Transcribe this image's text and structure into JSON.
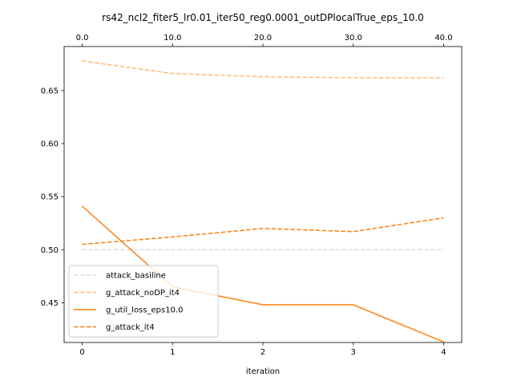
{
  "chart_data": {
    "type": "line",
    "title": "rs42_ncl2_fiter5_lr0.01_iter50_reg0.0001_outDPlocalTrue_eps_10.0",
    "xlabel": "iteration",
    "ylabel": "",
    "x": [
      0,
      1,
      2,
      3,
      4
    ],
    "xticks": [
      "0",
      "1",
      "2",
      "3",
      "4"
    ],
    "top_xticks": [
      "0.0",
      "10.0",
      "20.0",
      "30.0",
      "40.0"
    ],
    "yticks": [
      "0.45",
      "0.50",
      "0.55",
      "0.60",
      "0.65"
    ],
    "ytick_values": [
      0.45,
      0.5,
      0.55,
      0.6,
      0.65
    ],
    "xlim": [
      -0.2,
      4.2
    ],
    "ylim": [
      0.4125,
      0.6915
    ],
    "grid": false,
    "legend_position": "lower-left",
    "series": [
      {
        "name": "attack_basiline",
        "values": [
          0.5,
          0.5,
          0.5,
          0.5,
          0.5
        ],
        "color": "#dddddd",
        "dash": "dashed"
      },
      {
        "name": "g_attack_noDP_it4",
        "values": [
          0.678,
          0.666,
          0.663,
          0.662,
          0.662
        ],
        "color": "#ffbb78",
        "dash": "dashed"
      },
      {
        "name": "g_util_loss_eps10.0",
        "values": [
          0.541,
          0.465,
          0.448,
          0.448,
          0.413
        ],
        "color": "#ff7f0e",
        "dash": "solid"
      },
      {
        "name": "g_attack_it4",
        "values": [
          0.505,
          0.512,
          0.52,
          0.517,
          0.53
        ],
        "color": "#ff7f0e",
        "dash": "dashed"
      }
    ]
  }
}
